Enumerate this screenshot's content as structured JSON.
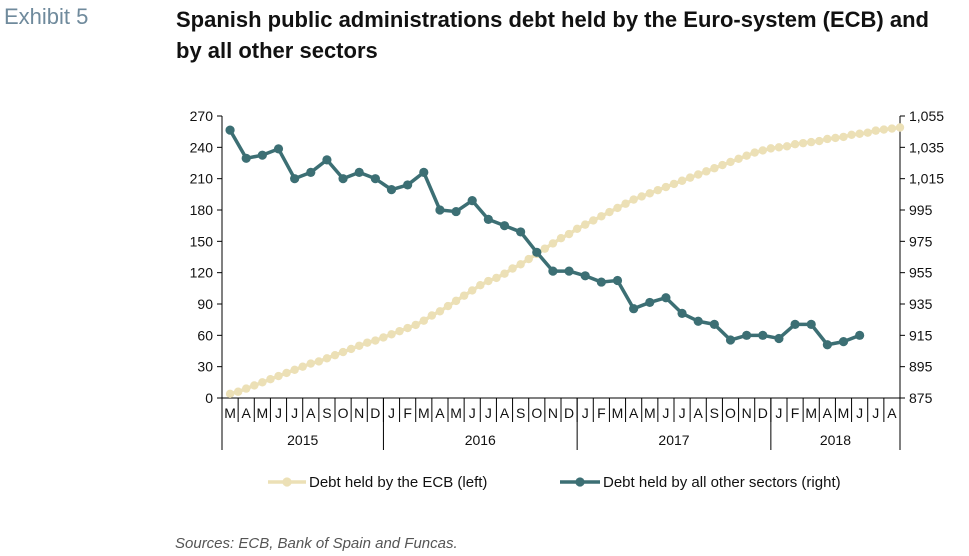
{
  "exhibit_label": "Exhibit 5",
  "title": "Spanish public administrations debt held by the Euro-system (ECB) and by all other sectors",
  "source": "Sources: ECB, Bank of Spain and Funcas.",
  "colors": {
    "ecb": "#ece0b6",
    "other": "#3c6f74",
    "axis": "#000000"
  },
  "chart_data": {
    "type": "line",
    "x": [
      "2015-03",
      "2015-04",
      "2015-05",
      "2015-06",
      "2015-07",
      "2015-08",
      "2015-09",
      "2015-10",
      "2015-11",
      "2015-12",
      "2016-01",
      "2016-02",
      "2016-03",
      "2016-04",
      "2016-05",
      "2016-06",
      "2016-07",
      "2016-08",
      "2016-09",
      "2016-10",
      "2016-11",
      "2016-12",
      "2017-01",
      "2017-02",
      "2017-03",
      "2017-04",
      "2017-05",
      "2017-06",
      "2017-07",
      "2017-08",
      "2017-09",
      "2017-10",
      "2017-11",
      "2017-12",
      "2018-01",
      "2018-02",
      "2018-03",
      "2018-04",
      "2018-05",
      "2018-06",
      "2018-07",
      "2018-08"
    ],
    "x_tick_labels": [
      "M",
      "A",
      "M",
      "J",
      "J",
      "A",
      "S",
      "O",
      "N",
      "D",
      "J",
      "F",
      "M",
      "A",
      "M",
      "J",
      "J",
      "A",
      "S",
      "O",
      "N",
      "D",
      "J",
      "F",
      "M",
      "A",
      "M",
      "J",
      "J",
      "A",
      "S",
      "O",
      "N",
      "D",
      "J",
      "F",
      "M",
      "A",
      "M",
      "J",
      "J",
      "A"
    ],
    "year_labels": [
      {
        "label": "2015",
        "start": 0,
        "end": 9
      },
      {
        "label": "2016",
        "start": 10,
        "end": 21
      },
      {
        "label": "2017",
        "start": 22,
        "end": 33
      },
      {
        "label": "2018",
        "start": 34,
        "end": 41
      }
    ],
    "y_left": {
      "ticks": [
        "0",
        "30",
        "60",
        "90",
        "120",
        "150",
        "180",
        "210",
        "240",
        "270"
      ],
      "lim": [
        0,
        270
      ]
    },
    "y_right": {
      "ticks": [
        "875",
        "895",
        "915",
        "935",
        "955",
        "975",
        "995",
        "1,015",
        "1,035",
        "1,055"
      ],
      "lim": [
        875,
        1055
      ]
    },
    "series": [
      {
        "name": "Debt held by the ECB (left)",
        "axis": "left",
        "color": "#ece0b6",
        "points": [
          {
            "x": 0,
            "y": 4
          },
          {
            "x": 0.5,
            "y": 6
          },
          {
            "x": 1,
            "y": 9
          },
          {
            "x": 1.5,
            "y": 12
          },
          {
            "x": 2,
            "y": 15
          },
          {
            "x": 2.5,
            "y": 18
          },
          {
            "x": 3,
            "y": 21
          },
          {
            "x": 3.5,
            "y": 24
          },
          {
            "x": 4,
            "y": 27
          },
          {
            "x": 4.5,
            "y": 30
          },
          {
            "x": 5,
            "y": 33
          },
          {
            "x": 5.5,
            "y": 35
          },
          {
            "x": 6,
            "y": 38
          },
          {
            "x": 6.5,
            "y": 41
          },
          {
            "x": 7,
            "y": 44
          },
          {
            "x": 7.5,
            "y": 47
          },
          {
            "x": 8,
            "y": 50
          },
          {
            "x": 8.5,
            "y": 53
          },
          {
            "x": 9,
            "y": 55
          },
          {
            "x": 9.5,
            "y": 58
          },
          {
            "x": 10,
            "y": 61
          },
          {
            "x": 10.5,
            "y": 64
          },
          {
            "x": 11,
            "y": 67
          },
          {
            "x": 11.5,
            "y": 70
          },
          {
            "x": 12,
            "y": 74
          },
          {
            "x": 12.5,
            "y": 79
          },
          {
            "x": 13,
            "y": 83
          },
          {
            "x": 13.5,
            "y": 88
          },
          {
            "x": 14,
            "y": 93
          },
          {
            "x": 14.5,
            "y": 98
          },
          {
            "x": 15,
            "y": 103
          },
          {
            "x": 15.5,
            "y": 108
          },
          {
            "x": 16,
            "y": 112
          },
          {
            "x": 16.5,
            "y": 115
          },
          {
            "x": 17,
            "y": 119
          },
          {
            "x": 17.5,
            "y": 124
          },
          {
            "x": 18,
            "y": 128
          },
          {
            "x": 18.5,
            "y": 133
          },
          {
            "x": 19,
            "y": 138
          },
          {
            "x": 19.5,
            "y": 143
          },
          {
            "x": 20,
            "y": 148
          },
          {
            "x": 20.5,
            "y": 153
          },
          {
            "x": 21,
            "y": 157
          },
          {
            "x": 21.5,
            "y": 162
          },
          {
            "x": 22,
            "y": 166
          },
          {
            "x": 22.5,
            "y": 170
          },
          {
            "x": 23,
            "y": 174
          },
          {
            "x": 23.5,
            "y": 178
          },
          {
            "x": 24,
            "y": 182
          },
          {
            "x": 24.5,
            "y": 186
          },
          {
            "x": 25,
            "y": 190
          },
          {
            "x": 25.5,
            "y": 193
          },
          {
            "x": 26,
            "y": 196
          },
          {
            "x": 26.5,
            "y": 199
          },
          {
            "x": 27,
            "y": 202
          },
          {
            "x": 27.5,
            "y": 205
          },
          {
            "x": 28,
            "y": 208
          },
          {
            "x": 28.5,
            "y": 211
          },
          {
            "x": 29,
            "y": 214
          },
          {
            "x": 29.5,
            "y": 217
          },
          {
            "x": 30,
            "y": 220
          },
          {
            "x": 30.5,
            "y": 223
          },
          {
            "x": 31,
            "y": 226
          },
          {
            "x": 31.5,
            "y": 229
          },
          {
            "x": 32,
            "y": 232
          },
          {
            "x": 32.5,
            "y": 235
          },
          {
            "x": 33,
            "y": 237
          },
          {
            "x": 33.5,
            "y": 239
          },
          {
            "x": 34,
            "y": 240
          },
          {
            "x": 34.5,
            "y": 241
          },
          {
            "x": 35,
            "y": 243
          },
          {
            "x": 35.5,
            "y": 244
          },
          {
            "x": 36,
            "y": 245
          },
          {
            "x": 36.5,
            "y": 246
          },
          {
            "x": 37,
            "y": 248
          },
          {
            "x": 37.5,
            "y": 249
          },
          {
            "x": 38,
            "y": 250
          },
          {
            "x": 38.5,
            "y": 252
          },
          {
            "x": 39,
            "y": 253
          },
          {
            "x": 39.5,
            "y": 254
          },
          {
            "x": 40,
            "y": 256
          },
          {
            "x": 40.5,
            "y": 257
          },
          {
            "x": 41,
            "y": 258
          },
          {
            "x": 41.5,
            "y": 259
          }
        ]
      },
      {
        "name": "Debt held by all other sectors (right)",
        "axis": "right",
        "color": "#3c6f74",
        "points": [
          {
            "x": 0,
            "y": 1046
          },
          {
            "x": 1,
            "y": 1028
          },
          {
            "x": 2,
            "y": 1030
          },
          {
            "x": 3,
            "y": 1034
          },
          {
            "x": 4,
            "y": 1015
          },
          {
            "x": 5,
            "y": 1019
          },
          {
            "x": 6,
            "y": 1027
          },
          {
            "x": 7,
            "y": 1015
          },
          {
            "x": 8,
            "y": 1019
          },
          {
            "x": 9,
            "y": 1015
          },
          {
            "x": 10,
            "y": 1008
          },
          {
            "x": 11,
            "y": 1011
          },
          {
            "x": 12,
            "y": 1019
          },
          {
            "x": 13,
            "y": 995
          },
          {
            "x": 14,
            "y": 994
          },
          {
            "x": 15,
            "y": 1001
          },
          {
            "x": 16,
            "y": 989
          },
          {
            "x": 17,
            "y": 985
          },
          {
            "x": 18,
            "y": 981
          },
          {
            "x": 19,
            "y": 968
          },
          {
            "x": 20,
            "y": 956
          },
          {
            "x": 21,
            "y": 956
          },
          {
            "x": 22,
            "y": 953
          },
          {
            "x": 23,
            "y": 949
          },
          {
            "x": 24,
            "y": 950
          },
          {
            "x": 25,
            "y": 932
          },
          {
            "x": 26,
            "y": 936
          },
          {
            "x": 27,
            "y": 939
          },
          {
            "x": 28,
            "y": 929
          },
          {
            "x": 29,
            "y": 924
          },
          {
            "x": 30,
            "y": 922
          },
          {
            "x": 31,
            "y": 912
          },
          {
            "x": 32,
            "y": 915
          },
          {
            "x": 33,
            "y": 915
          },
          {
            "x": 34,
            "y": 913
          },
          {
            "x": 35,
            "y": 922
          },
          {
            "x": 36,
            "y": 922
          },
          {
            "x": 37,
            "y": 909
          },
          {
            "x": 38,
            "y": 911
          },
          {
            "x": 39,
            "y": 915
          }
        ]
      }
    ],
    "legend_position": "bottom",
    "grid": false
  }
}
